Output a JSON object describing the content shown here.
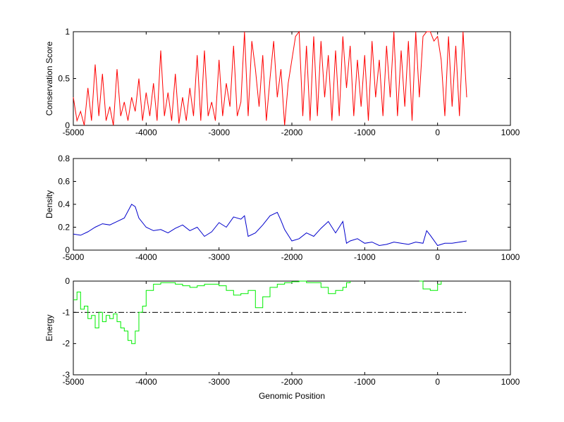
{
  "chart_data": [
    {
      "type": "line",
      "title": "",
      "xlabel": "",
      "ylabel": "Conservation Score",
      "xlim": [
        -5000,
        1000
      ],
      "ylim": [
        0,
        1
      ],
      "xticks": [
        "-5000",
        "-4000",
        "-3000",
        "-2000",
        "-1000",
        "0",
        "1000"
      ],
      "yticks": [
        "0",
        "0.5",
        "1"
      ],
      "series": [
        {
          "color": "#ff0000",
          "x": [
            -5000,
            -4950,
            -4900,
            -4850,
            -4800,
            -4750,
            -4700,
            -4650,
            -4600,
            -4550,
            -4500,
            -4450,
            -4400,
            -4350,
            -4300,
            -4250,
            -4200,
            -4150,
            -4100,
            -4050,
            -4000,
            -3950,
            -3900,
            -3850,
            -3800,
            -3750,
            -3700,
            -3650,
            -3600,
            -3550,
            -3500,
            -3450,
            -3400,
            -3350,
            -3300,
            -3250,
            -3200,
            -3150,
            -3100,
            -3050,
            -3000,
            -2950,
            -2900,
            -2850,
            -2800,
            -2750,
            -2700,
            -2650,
            -2600,
            -2550,
            -2500,
            -2450,
            -2400,
            -2350,
            -2300,
            -2250,
            -2200,
            -2150,
            -2100,
            -2050,
            -2000,
            -1950,
            -1900,
            -1850,
            -1800,
            -1750,
            -1700,
            -1650,
            -1600,
            -1550,
            -1500,
            -1450,
            -1400,
            -1350,
            -1300,
            -1250,
            -1200,
            -1150,
            -1100,
            -1050,
            -1000,
            -950,
            -900,
            -850,
            -800,
            -750,
            -700,
            -650,
            -600,
            -550,
            -500,
            -450,
            -400,
            -350,
            -300,
            -250,
            -200,
            -150,
            -100,
            -50,
            0,
            50,
            100,
            150,
            200,
            250,
            300,
            350,
            400
          ],
          "values": [
            0.3,
            0.05,
            0.15,
            0.0,
            0.4,
            0.05,
            0.65,
            0.1,
            0.55,
            0.05,
            0.2,
            0.0,
            0.6,
            0.1,
            0.25,
            0.05,
            0.3,
            0.15,
            0.5,
            0.05,
            0.35,
            0.1,
            0.45,
            0.05,
            0.8,
            0.1,
            0.35,
            0.05,
            0.55,
            0.02,
            0.3,
            0.05,
            0.4,
            0.1,
            0.75,
            0.05,
            0.8,
            0.1,
            0.25,
            0.05,
            0.7,
            0.1,
            0.45,
            0.2,
            0.85,
            0.1,
            0.25,
            1.0,
            0.1,
            0.9,
            0.6,
            0.2,
            0.75,
            0.05,
            0.5,
            0.9,
            0.3,
            0.6,
            0.0,
            0.45,
            0.7,
            0.95,
            1.0,
            0.1,
            0.85,
            0.05,
            0.95,
            0.1,
            0.9,
            0.3,
            0.75,
            0.05,
            0.8,
            0.1,
            0.95,
            0.4,
            0.85,
            0.1,
            0.7,
            0.2,
            0.75,
            0.05,
            0.9,
            0.3,
            0.7,
            0.1,
            0.85,
            0.3,
            1.0,
            0.1,
            0.8,
            0.2,
            0.9,
            0.05,
            1.0,
            0.3,
            0.95,
            1.0,
            1.0,
            0.9,
            0.95,
            0.7,
            0.1,
            0.95,
            0.2,
            0.85,
            0.1,
            1.0,
            0.3
          ]
        }
      ]
    },
    {
      "type": "line",
      "title": "",
      "xlabel": "",
      "ylabel": "Density",
      "xlim": [
        -5000,
        1000
      ],
      "ylim": [
        0,
        0.8
      ],
      "xticks": [
        "-5000",
        "-4000",
        "-3000",
        "-2000",
        "-1000",
        "0",
        "1000"
      ],
      "yticks": [
        "0",
        "0.2",
        "0.4",
        "0.6",
        "0.8"
      ],
      "series": [
        {
          "color": "#0000cc",
          "x": [
            -5000,
            -4900,
            -4800,
            -4700,
            -4600,
            -4500,
            -4400,
            -4300,
            -4200,
            -4150,
            -4100,
            -4000,
            -3900,
            -3800,
            -3700,
            -3600,
            -3500,
            -3400,
            -3300,
            -3200,
            -3100,
            -3000,
            -2900,
            -2800,
            -2700,
            -2650,
            -2600,
            -2500,
            -2400,
            -2300,
            -2200,
            -2150,
            -2100,
            -2000,
            -1900,
            -1800,
            -1700,
            -1600,
            -1500,
            -1400,
            -1300,
            -1250,
            -1200,
            -1100,
            -1000,
            -900,
            -800,
            -700,
            -600,
            -500,
            -400,
            -300,
            -200,
            -150,
            -100,
            0,
            100,
            200,
            300,
            400
          ],
          "values": [
            0.14,
            0.13,
            0.16,
            0.2,
            0.23,
            0.22,
            0.25,
            0.28,
            0.4,
            0.38,
            0.28,
            0.2,
            0.17,
            0.18,
            0.15,
            0.19,
            0.22,
            0.17,
            0.2,
            0.12,
            0.16,
            0.24,
            0.2,
            0.29,
            0.27,
            0.3,
            0.12,
            0.15,
            0.22,
            0.3,
            0.33,
            0.26,
            0.18,
            0.08,
            0.1,
            0.15,
            0.12,
            0.19,
            0.25,
            0.15,
            0.25,
            0.06,
            0.08,
            0.1,
            0.06,
            0.07,
            0.04,
            0.05,
            0.07,
            0.06,
            0.05,
            0.07,
            0.06,
            0.17,
            0.13,
            0.04,
            0.06,
            0.06,
            0.07,
            0.08
          ]
        }
      ]
    },
    {
      "type": "line",
      "title": "",
      "xlabel": "Genomic Position",
      "ylabel": "Energy",
      "xlim": [
        -5000,
        1000
      ],
      "ylim": [
        -3,
        0
      ],
      "xticks": [
        "-5000",
        "-4000",
        "-3000",
        "-2000",
        "-1000",
        "0",
        "1000"
      ],
      "yticks": [
        "-3",
        "-2",
        "-1",
        "0"
      ],
      "series": [
        {
          "color": "#00ee00",
          "x": [
            -5000,
            -4950,
            -4900,
            -4850,
            -4800,
            -4750,
            -4700,
            -4650,
            -4600,
            -4550,
            -4500,
            -4450,
            -4400,
            -4350,
            -4300,
            -4250,
            -4200,
            -4150,
            -4100,
            -4050,
            -4000,
            -3900,
            -3800,
            -3700,
            -3600,
            -3500,
            -3400,
            -3300,
            -3200,
            -3100,
            -3000,
            -2900,
            -2800,
            -2700,
            -2600,
            -2500,
            -2400,
            -2300,
            -2200,
            -2100,
            -2000,
            -1900,
            -1800,
            -1700,
            -1600,
            -1500,
            -1400,
            -1300,
            -1250,
            -1200
          ],
          "values": [
            -0.6,
            -0.35,
            -0.9,
            -0.8,
            -1.2,
            -1.1,
            -1.5,
            -1.0,
            -1.3,
            -1.1,
            -1.2,
            -1.05,
            -1.3,
            -1.5,
            -1.6,
            -1.9,
            -2.0,
            -1.6,
            -1.0,
            -0.8,
            -0.3,
            -0.1,
            -0.05,
            -0.05,
            -0.1,
            -0.15,
            -0.2,
            -0.15,
            -0.1,
            -0.1,
            -0.15,
            -0.3,
            -0.45,
            -0.4,
            -0.3,
            -0.85,
            -0.5,
            -0.2,
            -0.1,
            -0.05,
            -0.02,
            0.0,
            -0.05,
            -0.05,
            -0.2,
            -0.4,
            -0.3,
            -0.2,
            -0.05,
            0.0
          ]
        },
        {
          "color": "#00ee00",
          "x": [
            -250,
            -200,
            -100,
            0,
            50
          ],
          "values": [
            0.0,
            -0.25,
            -0.3,
            -0.1,
            0.0
          ]
        }
      ],
      "reference_line": {
        "y": -1,
        "x_range": [
          -5000,
          400
        ],
        "style": "dash-dot",
        "color": "#000000"
      }
    }
  ]
}
